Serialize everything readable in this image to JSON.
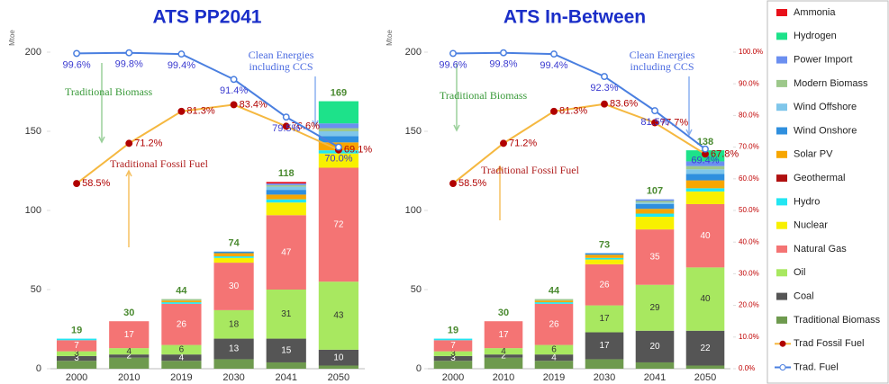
{
  "chart_data": [
    {
      "type": "bar",
      "stacked": true,
      "title": "ATS PP2041",
      "y_label": "Mtoe",
      "categories": [
        "2000",
        "2010",
        "2019",
        "2030",
        "2041",
        "2050"
      ],
      "ylim": [
        0,
        200
      ],
      "yticks": [
        0,
        50,
        100,
        150,
        200
      ],
      "y2lim": [
        0,
        100
      ],
      "totals": [
        19,
        30,
        44,
        74,
        118,
        169
      ],
      "series": [
        {
          "name": "Ammonia",
          "color": "#e8101a",
          "values": [
            0,
            0,
            0,
            0,
            1,
            0
          ]
        },
        {
          "name": "Hydrogen",
          "color": "#1de28a",
          "values": [
            0,
            0,
            0,
            0,
            0,
            14
          ]
        },
        {
          "name": "Power Import",
          "color": "#6b8ff0",
          "values": [
            0,
            0,
            0,
            0,
            1,
            3
          ]
        },
        {
          "name": "Modern Biomass",
          "color": "#9dc88b",
          "values": [
            0,
            0,
            1,
            0,
            1,
            2
          ]
        },
        {
          "name": "Wind Offshore",
          "color": "#7fc6ea",
          "values": [
            0,
            0,
            0,
            0,
            2,
            3
          ]
        },
        {
          "name": "Wind Onshore",
          "color": "#2f8fde",
          "values": [
            0,
            0,
            0,
            1,
            3,
            4
          ]
        },
        {
          "name": "Solar PV",
          "color": "#f7a600",
          "values": [
            0,
            0,
            1,
            2,
            3,
            5
          ]
        },
        {
          "name": "Geothermal",
          "color": "#b01010",
          "values": [
            0,
            0,
            0,
            0,
            0,
            0
          ]
        },
        {
          "name": "Hydro",
          "color": "#22e6f2",
          "values": [
            1,
            0,
            1,
            1,
            2,
            2
          ]
        },
        {
          "name": "Nuclear",
          "color": "#f8f000",
          "values": [
            0,
            0,
            0,
            3,
            8,
            9
          ]
        },
        {
          "name": "Natural Gas",
          "color": "#f47474",
          "values": [
            7,
            17,
            26,
            30,
            47,
            72
          ],
          "show_labels": true
        },
        {
          "name": "Oil",
          "color": "#a8e860",
          "values": [
            3,
            4,
            6,
            18,
            31,
            43
          ],
          "show_labels": true
        },
        {
          "name": "Coal",
          "color": "#555555",
          "values": [
            3,
            2,
            4,
            13,
            15,
            10
          ],
          "show_labels": true
        },
        {
          "name": "Traditional Biomass",
          "color": "#6e9a4e",
          "values": [
            5,
            7,
            5,
            6,
            4,
            2
          ]
        },
        {
          "name": "Trad Fossil Fuel",
          "type": "line",
          "axis": "y2",
          "color": "#f5b840",
          "marker_color": "#b00000",
          "values": [
            58.5,
            71.2,
            81.3,
            83.4,
            76.6,
            69.1
          ],
          "value_labels": [
            "58.5%",
            "71.2%",
            "81.3%",
            "83.4%",
            "76.6%",
            "69.1%"
          ]
        },
        {
          "name": "Trad. Fuel",
          "type": "line",
          "axis": "y2",
          "color": "#4a7fe0",
          "marker_color": "#4a7fe0",
          "values": [
            99.6,
            99.8,
            99.4,
            91.4,
            79.5,
            70.0
          ],
          "value_labels": [
            "99.6%",
            "99.8%",
            "99.4%",
            "91.4%",
            "79.5%",
            "70.0%"
          ]
        }
      ],
      "annotations": [
        {
          "text": [
            "Traditional Biomass"
          ],
          "color": "#3a9a3a"
        },
        {
          "text": [
            "Traditional Fossil Fuel"
          ],
          "color": "#b02020"
        },
        {
          "text": [
            "Clean Energies",
            "including CCS"
          ],
          "color": "#4a6ae0"
        }
      ]
    },
    {
      "type": "bar",
      "stacked": true,
      "title": "ATS In-Between",
      "y_label": "Mtoe",
      "categories": [
        "2000",
        "2010",
        "2019",
        "2030",
        "2041",
        "2050"
      ],
      "ylim": [
        0,
        200
      ],
      "yticks": [
        0,
        50,
        100,
        150,
        200
      ],
      "y2lim": [
        0,
        100
      ],
      "y2ticks": [
        {
          "value": 0,
          "label": "0.0%"
        },
        {
          "value": 10,
          "label": "10.0%"
        },
        {
          "value": 20,
          "label": "20.0%"
        },
        {
          "value": 30,
          "label": "30.0%"
        },
        {
          "value": 40,
          "label": "40.0%"
        },
        {
          "value": 50,
          "label": "50.0%"
        },
        {
          "value": 60,
          "label": "60.0%"
        },
        {
          "value": 70,
          "label": "70.0%"
        },
        {
          "value": 80,
          "label": "80.0%"
        },
        {
          "value": 90,
          "label": "90.0%"
        },
        {
          "value": 100,
          "label": "100.0%"
        }
      ],
      "totals": [
        19,
        30,
        44,
        73,
        107,
        138
      ],
      "series": [
        {
          "name": "Ammonia",
          "color": "#e8101a",
          "values": [
            0,
            0,
            0,
            0,
            0,
            0
          ]
        },
        {
          "name": "Hydrogen",
          "color": "#1de28a",
          "values": [
            0,
            0,
            0,
            0,
            0,
            7
          ]
        },
        {
          "name": "Power Import",
          "color": "#6b8ff0",
          "values": [
            0,
            0,
            0,
            0,
            1,
            3
          ]
        },
        {
          "name": "Modern Biomass",
          "color": "#9dc88b",
          "values": [
            0,
            0,
            1,
            0,
            1,
            2
          ]
        },
        {
          "name": "Wind Offshore",
          "color": "#7fc6ea",
          "values": [
            0,
            0,
            0,
            0,
            1,
            3
          ]
        },
        {
          "name": "Wind Onshore",
          "color": "#2f8fde",
          "values": [
            0,
            0,
            0,
            1,
            3,
            4
          ]
        },
        {
          "name": "Solar PV",
          "color": "#f7a600",
          "values": [
            0,
            0,
            1,
            2,
            3,
            5
          ]
        },
        {
          "name": "Geothermal",
          "color": "#b01010",
          "values": [
            0,
            0,
            0,
            0,
            0,
            0
          ]
        },
        {
          "name": "Hydro",
          "color": "#22e6f2",
          "values": [
            1,
            0,
            1,
            1,
            2,
            2
          ]
        },
        {
          "name": "Nuclear",
          "color": "#f8f000",
          "values": [
            0,
            0,
            0,
            3,
            8,
            8
          ]
        },
        {
          "name": "Natural Gas",
          "color": "#f47474",
          "values": [
            7,
            17,
            26,
            26,
            35,
            40
          ],
          "show_labels": true
        },
        {
          "name": "Oil",
          "color": "#a8e860",
          "values": [
            3,
            4,
            6,
            17,
            29,
            40
          ],
          "show_labels": true
        },
        {
          "name": "Coal",
          "color": "#555555",
          "values": [
            3,
            2,
            4,
            17,
            20,
            22
          ],
          "show_labels": true
        },
        {
          "name": "Traditional Biomass",
          "color": "#6e9a4e",
          "values": [
            5,
            7,
            5,
            6,
            4,
            2
          ]
        },
        {
          "name": "Trad Fossil Fuel",
          "type": "line",
          "axis": "y2",
          "color": "#f5b840",
          "marker_color": "#b00000",
          "values": [
            58.5,
            71.2,
            81.3,
            83.6,
            77.7,
            67.8
          ],
          "value_labels": [
            "58.5%",
            "71.2%",
            "81.3%",
            "83.6%",
            "77.7%",
            "67.8%"
          ]
        },
        {
          "name": "Trad. Fuel",
          "type": "line",
          "axis": "y2",
          "color": "#4a7fe0",
          "marker_color": "#4a7fe0",
          "values": [
            99.6,
            99.8,
            99.4,
            92.3,
            81.5,
            69.4
          ],
          "value_labels": [
            "99.6%",
            "99.8%",
            "99.4%",
            "92.3%",
            "81.5%",
            "69.4%"
          ]
        }
      ],
      "annotations": [
        {
          "text": [
            "Traditional Biomass"
          ],
          "color": "#3a9a3a"
        },
        {
          "text": [
            "Traditional Fossil Fuel"
          ],
          "color": "#b02020"
        },
        {
          "text": [
            "Clean Energies",
            "including CCS"
          ],
          "color": "#4a6ae0"
        }
      ]
    }
  ]
}
